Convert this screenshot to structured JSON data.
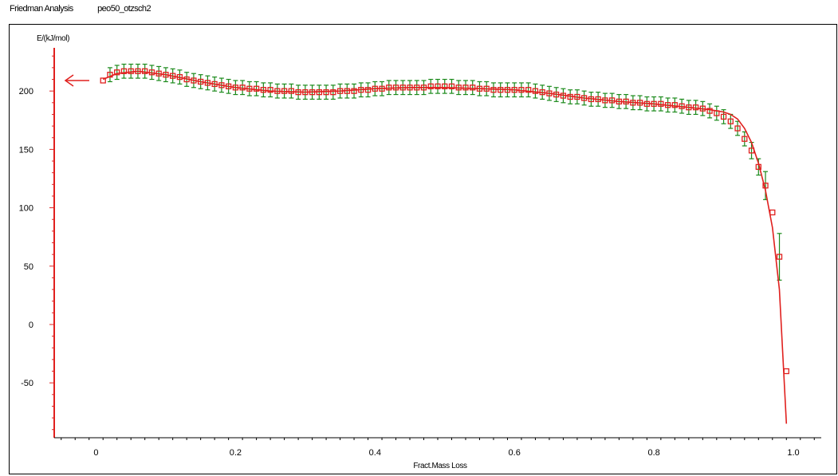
{
  "header": {
    "method": "Friedman Analysis",
    "file": "peo50_otzsch2"
  },
  "colors": {
    "axis": "#e0201e",
    "fit_line": "#e0201e",
    "markers": "#e0201e",
    "error_bars": "#1b8a1b"
  },
  "chart_data": {
    "type": "scatter",
    "ylabel": "E/(kJ/mol)",
    "xlabel": "Fract.Mass Loss",
    "xlim": [
      -0.06,
      1.04
    ],
    "ylim": [
      -97,
      237
    ],
    "x_ticks": [
      0,
      0.2,
      0.4,
      0.6,
      0.8,
      1.0
    ],
    "x_tick_labels": [
      "0",
      "0.2",
      "0.4",
      "0.6",
      "0.8",
      "1.0"
    ],
    "y_ticks": [
      -50,
      0,
      50,
      100,
      150,
      200
    ],
    "y_tick_labels": [
      "-50",
      "0",
      "50",
      "100",
      "150",
      "200"
    ],
    "grid": false,
    "axis_arrow": "left",
    "series": [
      {
        "type": "markers_with_error_bars",
        "x": [
          0.01,
          0.02,
          0.03,
          0.04,
          0.05,
          0.06,
          0.07,
          0.08,
          0.09,
          0.1,
          0.11,
          0.12,
          0.13,
          0.14,
          0.15,
          0.16,
          0.17,
          0.18,
          0.19,
          0.2,
          0.21,
          0.22,
          0.23,
          0.24,
          0.25,
          0.26,
          0.27,
          0.28,
          0.29,
          0.3,
          0.31,
          0.32,
          0.33,
          0.34,
          0.35,
          0.36,
          0.37,
          0.38,
          0.39,
          0.4,
          0.41,
          0.42,
          0.43,
          0.44,
          0.45,
          0.46,
          0.47,
          0.48,
          0.49,
          0.5,
          0.51,
          0.52,
          0.53,
          0.54,
          0.55,
          0.56,
          0.57,
          0.58,
          0.59,
          0.6,
          0.61,
          0.62,
          0.63,
          0.64,
          0.65,
          0.66,
          0.67,
          0.68,
          0.69,
          0.7,
          0.71,
          0.72,
          0.73,
          0.74,
          0.75,
          0.76,
          0.77,
          0.78,
          0.79,
          0.8,
          0.81,
          0.82,
          0.83,
          0.84,
          0.85,
          0.86,
          0.87,
          0.88,
          0.89,
          0.9,
          0.91,
          0.92,
          0.93,
          0.94,
          0.95,
          0.96,
          0.97,
          0.98,
          0.99
        ],
        "y": [
          209,
          214,
          216,
          217,
          217,
          217,
          217,
          216,
          215,
          214,
          213,
          212,
          210,
          209,
          208,
          207,
          206,
          205,
          204,
          203,
          203,
          202,
          202,
          201,
          201,
          200,
          200,
          200,
          199,
          199,
          199,
          199,
          199,
          199,
          200,
          200,
          200,
          201,
          201,
          202,
          202,
          203,
          203,
          203,
          203,
          203,
          203,
          204,
          204,
          204,
          204,
          203,
          203,
          203,
          202,
          202,
          201,
          201,
          201,
          201,
          201,
          201,
          200,
          199,
          198,
          197,
          196,
          195,
          195,
          194,
          193,
          193,
          192,
          192,
          191,
          191,
          190,
          190,
          189,
          189,
          189,
          188,
          188,
          187,
          186,
          186,
          185,
          183,
          181,
          178,
          174,
          168,
          159,
          149,
          135,
          119,
          96,
          58,
          -40
        ],
        "err": [
          0,
          6,
          6,
          6,
          6,
          6,
          6,
          6,
          6,
          6,
          6,
          6,
          6,
          6,
          6,
          6,
          6,
          6,
          6,
          6,
          6,
          6,
          6,
          6,
          6,
          6,
          6,
          6,
          6,
          6,
          6,
          6,
          6,
          6,
          6,
          6,
          6,
          6,
          6,
          6,
          6,
          6,
          6,
          6,
          6,
          6,
          6,
          6,
          6,
          6,
          6,
          6,
          6,
          6,
          6,
          6,
          6,
          6,
          6,
          6,
          6,
          6,
          6,
          6,
          6,
          6,
          6,
          6,
          6,
          6,
          6,
          6,
          6,
          6,
          6,
          6,
          6,
          6,
          6,
          6,
          6,
          6,
          6,
          6,
          6,
          6,
          6,
          6,
          6,
          6,
          6,
          6,
          6,
          7,
          7,
          12,
          0,
          20,
          0
        ]
      },
      {
        "type": "line",
        "x": [
          0.01,
          0.03,
          0.06,
          0.1,
          0.15,
          0.2,
          0.25,
          0.3,
          0.35,
          0.4,
          0.45,
          0.5,
          0.55,
          0.6,
          0.65,
          0.7,
          0.75,
          0.8,
          0.85,
          0.88,
          0.9,
          0.91,
          0.92,
          0.93,
          0.94,
          0.95,
          0.96,
          0.97,
          0.98,
          0.99
        ],
        "y": [
          210,
          215,
          217,
          214,
          208,
          203,
          200,
          199,
          200,
          202,
          203,
          203,
          202,
          201,
          198,
          194,
          191,
          189,
          186,
          184,
          182,
          180,
          176,
          168,
          156,
          138,
          115,
          83,
          30,
          -85
        ]
      }
    ]
  }
}
